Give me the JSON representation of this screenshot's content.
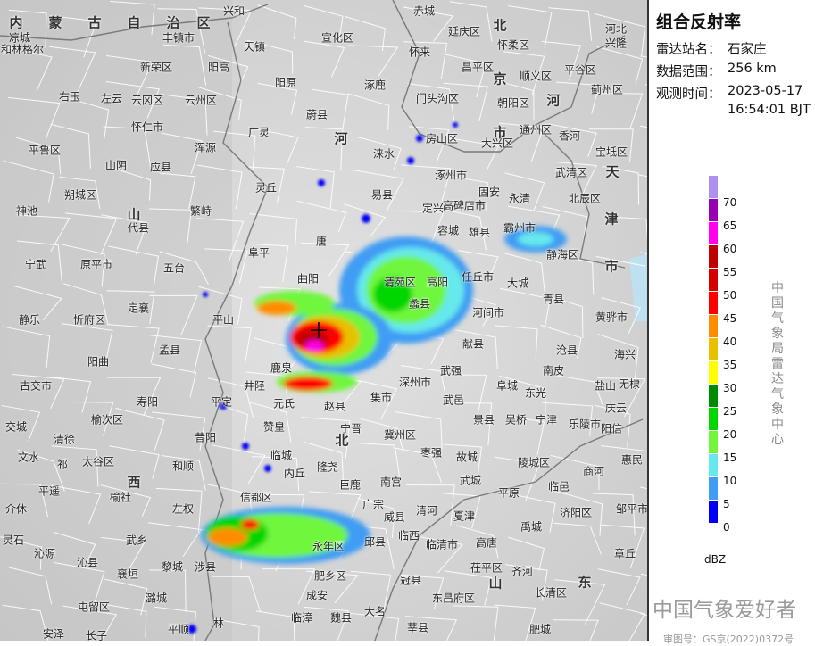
{
  "panel": {
    "title": "组合反射率",
    "station_label": "雷达站名：",
    "station": "石家庄",
    "range_label": "数据范围：",
    "range": "256 km",
    "time_label": "观测时间：",
    "date": "2023-05-17",
    "time": "16:54:01 BJT",
    "agency_vertical": "中国气象局雷达气象中心",
    "watermark": "中国气象爱好者",
    "review_number": "审图号：GS京(2022)0372号"
  },
  "colorbar": {
    "unit": "dBZ",
    "ticks": [
      "0",
      "5",
      "10",
      "15",
      "20",
      "25",
      "30",
      "35",
      "40",
      "45",
      "50",
      "55",
      "60",
      "65",
      "70"
    ],
    "colors": [
      "#0000f6",
      "#409cf4",
      "#66e8ec",
      "#70f63c",
      "#00d600",
      "#008c00",
      "#ffff00",
      "#e8c000",
      "#ff8c00",
      "#ff0000",
      "#d60000",
      "#c00000",
      "#ff00f0",
      "#9800b4",
      "#ae90f0"
    ]
  },
  "map": {
    "station_marker": "石家庄雷达站",
    "labels": [
      "内",
      "蒙",
      "古",
      "自",
      "治",
      "区",
      "兴和",
      "赤城",
      "北",
      "河北",
      "凉城",
      "丰镇市",
      "天镇",
      "宣化区",
      "延庆区",
      "怀柔区",
      "兴隆",
      "和林格尔",
      "新荣区",
      "阳高",
      "怀来",
      "昌平区",
      "顺义区",
      "平谷区",
      "右玉",
      "左云",
      "云冈区",
      "云州区",
      "阳原",
      "涿鹿",
      "门头沟区",
      "京",
      "朝阳区",
      "蓟州区",
      "怀仁市",
      "蔚县",
      "广灵",
      "河",
      "房山区",
      "大兴区",
      "通州区",
      "香河",
      "宝坻区",
      "平鲁区",
      "浑源",
      "山阴",
      "应县",
      "涞水",
      "涿州市",
      "武清区",
      "天",
      "朔城区",
      "灵丘",
      "易县",
      "高碑店市",
      "固安",
      "永清",
      "北辰区",
      "神池",
      "繁峙",
      "代县",
      "山",
      "定兴",
      "霸州市",
      "津",
      "宁武",
      "原平市",
      "五台",
      "阜平",
      "唐",
      "容城",
      "雄县",
      "静海区",
      "静乐",
      "忻府区",
      "定襄",
      "平山",
      "曲阳",
      "清苑区",
      "高阳",
      "任丘市",
      "大城",
      "青县",
      "黄骅市",
      "阳曲",
      "孟县",
      "蠡县",
      "河间市",
      "沧县",
      "献县",
      "古交市",
      "寿阳",
      "平定",
      "井陉",
      "深州市",
      "武强",
      "阜城",
      "东光",
      "南皮",
      "盐山",
      "海兴",
      "无棣",
      "交城",
      "清徐",
      "榆次区",
      "元氏",
      "赵县",
      "武邑",
      "景县",
      "吴桥",
      "宁津",
      "乐陵市",
      "庆云",
      "阳信",
      "文水",
      "祁",
      "太谷区",
      "昔阳",
      "赞皇",
      "宁晋",
      "冀州区",
      "枣强",
      "故城",
      "陵城区",
      "平原",
      "商河",
      "惠民",
      "和顺",
      "临城",
      "隆尧",
      "南宫",
      "武城",
      "临邑",
      "平遥",
      "西",
      "榆社",
      "左权",
      "内丘",
      "巨鹿",
      "广宗",
      "清河",
      "夏津",
      "高唐",
      "齐河",
      "济阳区",
      "邹平市",
      "介休",
      "武乡",
      "信都区",
      "威县",
      "临西",
      "临清市",
      "茌平区",
      "禹城",
      "灵石",
      "沁源",
      "沁县",
      "襄垣",
      "黎城",
      "涉县",
      "永年区",
      "邱县",
      "冠县",
      "东昌府区",
      "长清区",
      "章丘",
      "屯留区",
      "潞城",
      "成安",
      "肥乡区",
      "临漳",
      "魏县",
      "大名",
      "莘县",
      "山",
      "东",
      "安泽",
      "长子",
      "平顺",
      "林",
      "肥城",
      "北",
      "市",
      "市",
      "河",
      "集市",
      "鹿泉"
    ]
  }
}
